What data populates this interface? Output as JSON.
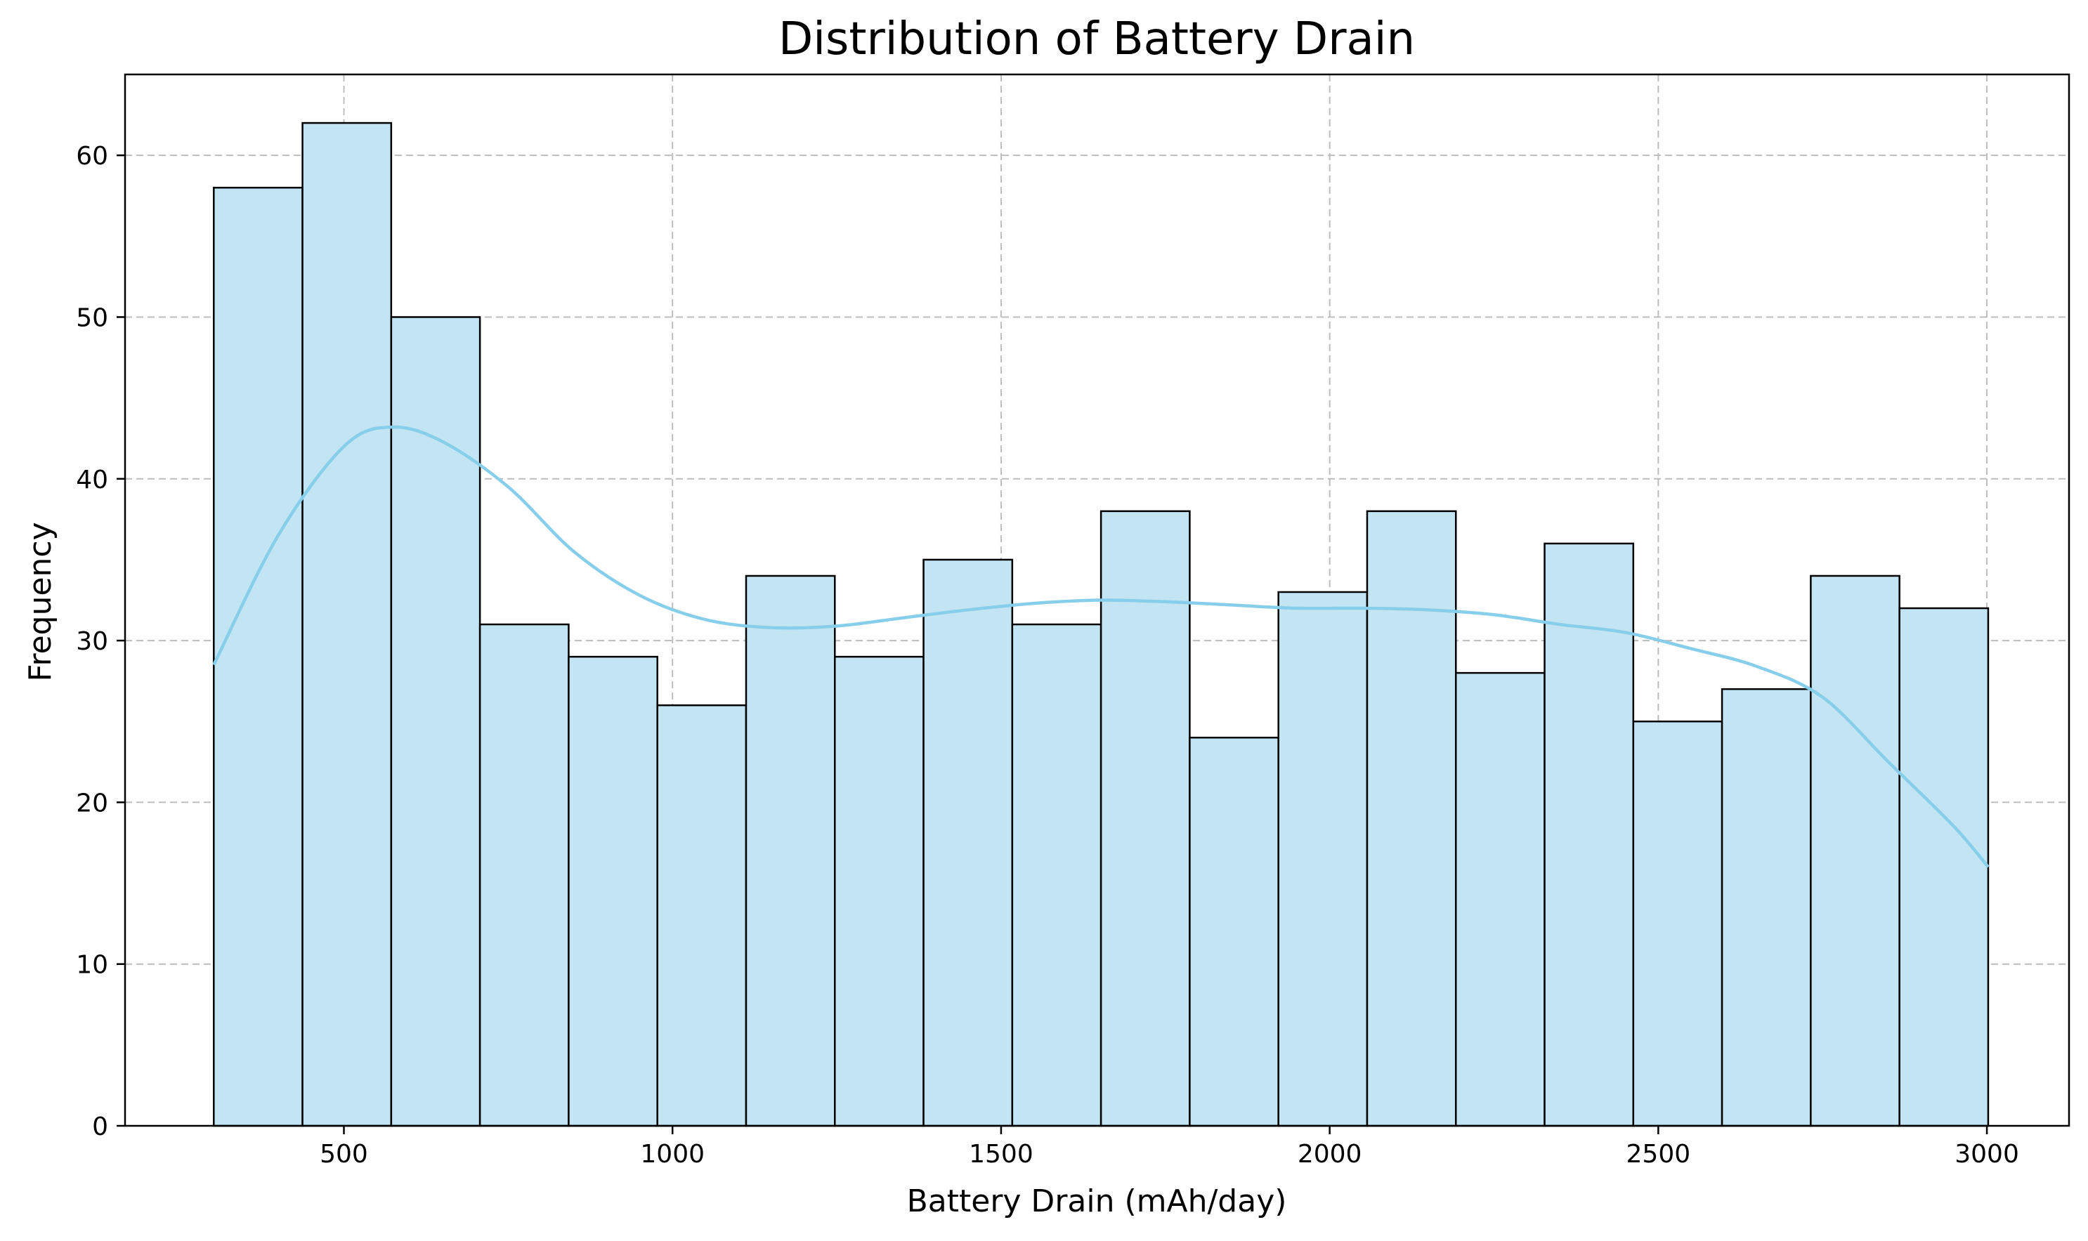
{
  "chart_data": {
    "type": "bar",
    "title": "Distribution of Battery Drain",
    "xlabel": "Battery Drain (mAh/day)",
    "ylabel": "Frequency",
    "xlim": [
      167,
      3125
    ],
    "ylim": [
      0,
      65
    ],
    "x_ticks": [
      500,
      1000,
      1500,
      2000,
      2500,
      3000
    ],
    "y_ticks": [
      0,
      10,
      20,
      30,
      40,
      50,
      60
    ],
    "grid": true,
    "bar_fill_color": "#c2e4f3",
    "bar_edge_color": "#000000",
    "kde_color": "#87ceeb",
    "bins": [
      {
        "x0": 302,
        "x1": 437,
        "count": 58
      },
      {
        "x0": 437,
        "x1": 572,
        "count": 62
      },
      {
        "x0": 572,
        "x1": 707,
        "count": 50
      },
      {
        "x0": 707,
        "x1": 842,
        "count": 31
      },
      {
        "x0": 842,
        "x1": 977,
        "count": 29
      },
      {
        "x0": 977,
        "x1": 1112,
        "count": 26
      },
      {
        "x0": 1112,
        "x1": 1247,
        "count": 34
      },
      {
        "x0": 1247,
        "x1": 1382,
        "count": 29
      },
      {
        "x0": 1382,
        "x1": 1517,
        "count": 35
      },
      {
        "x0": 1517,
        "x1": 1652,
        "count": 31
      },
      {
        "x0": 1652,
        "x1": 1787,
        "count": 38
      },
      {
        "x0": 1787,
        "x1": 1922,
        "count": 24
      },
      {
        "x0": 1922,
        "x1": 2057,
        "count": 33
      },
      {
        "x0": 2057,
        "x1": 2192,
        "count": 38
      },
      {
        "x0": 2192,
        "x1": 2327,
        "count": 28
      },
      {
        "x0": 2327,
        "x1": 2462,
        "count": 36
      },
      {
        "x0": 2462,
        "x1": 2597,
        "count": 25
      },
      {
        "x0": 2597,
        "x1": 2732,
        "count": 27
      },
      {
        "x0": 2732,
        "x1": 2867,
        "count": 34
      },
      {
        "x0": 2867,
        "x1": 3002,
        "count": 32
      }
    ],
    "kde": {
      "x": [
        302,
        400,
        500,
        572,
        650,
        750,
        850,
        950,
        1050,
        1150,
        1250,
        1350,
        1450,
        1550,
        1650,
        1750,
        1850,
        1950,
        2050,
        2150,
        2250,
        2350,
        2450,
        2550,
        2650,
        2750,
        2850,
        2950,
        3002
      ],
      "y": [
        28.5,
        36.5,
        42,
        43.2,
        42.3,
        39.5,
        35.5,
        32.8,
        31.3,
        30.8,
        30.9,
        31.4,
        31.9,
        32.3,
        32.5,
        32.4,
        32.2,
        32.0,
        32.0,
        31.9,
        31.6,
        31.0,
        30.5,
        29.5,
        28.4,
        26.5,
        22.5,
        18.5,
        16
      ]
    }
  }
}
